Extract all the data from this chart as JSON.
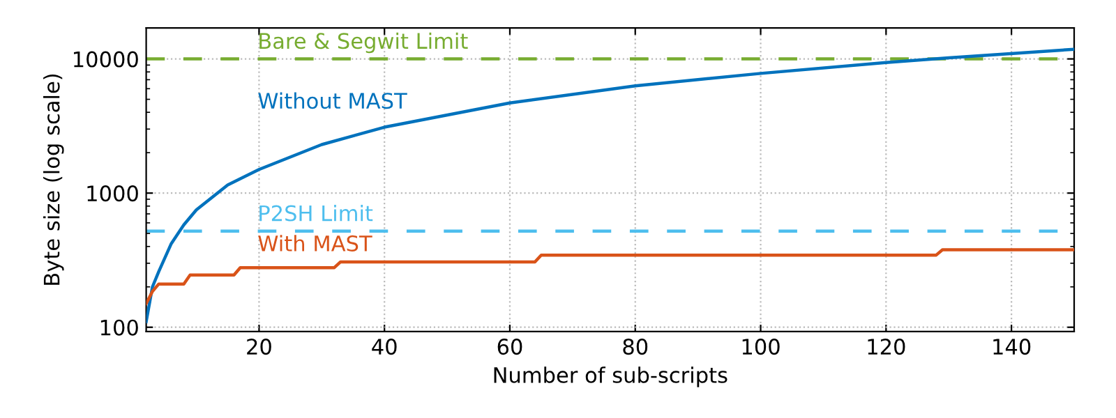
{
  "chart_data": {
    "type": "line",
    "xlabel": "Number of sub-scripts",
    "ylabel": "Byte size (log scale)",
    "log": "y",
    "xlim": [
      2,
      150
    ],
    "xticks": [
      20,
      40,
      60,
      80,
      100,
      120,
      140
    ],
    "ylim": [
      93,
      17000
    ],
    "yticks": [
      100,
      1000,
      10000
    ],
    "grid": true,
    "legend": false,
    "line_style": "solid",
    "marker": "none",
    "series": [
      {
        "name": "Without MAST",
        "color": "#0072bd",
        "x": [
          2,
          3,
          4,
          6,
          8,
          10,
          15,
          20,
          30,
          40,
          60,
          80,
          100,
          120,
          130,
          150
        ],
        "values": [
          110,
          200,
          260,
          420,
          580,
          750,
          1150,
          1500,
          2300,
          3100,
          4700,
          6300,
          7800,
          9400,
          10200,
          11800
        ]
      },
      {
        "name": "With MAST",
        "color": "#d95319",
        "x": [
          2,
          3,
          4,
          8,
          9,
          16,
          17,
          32,
          33,
          64,
          65,
          128,
          129,
          150
        ],
        "values": [
          150,
          185,
          210,
          210,
          245,
          245,
          278,
          278,
          307,
          307,
          345,
          345,
          378,
          378
        ]
      }
    ],
    "ref_lines": [
      {
        "axis": "y",
        "value": 10000,
        "label": "Bare & Segwit Limit",
        "color": "#77ac30",
        "line_style": "dashed"
      },
      {
        "axis": "y",
        "value": 520,
        "label": "P2SH Limit",
        "color": "#4dbeee",
        "line_style": "dashed"
      }
    ]
  }
}
